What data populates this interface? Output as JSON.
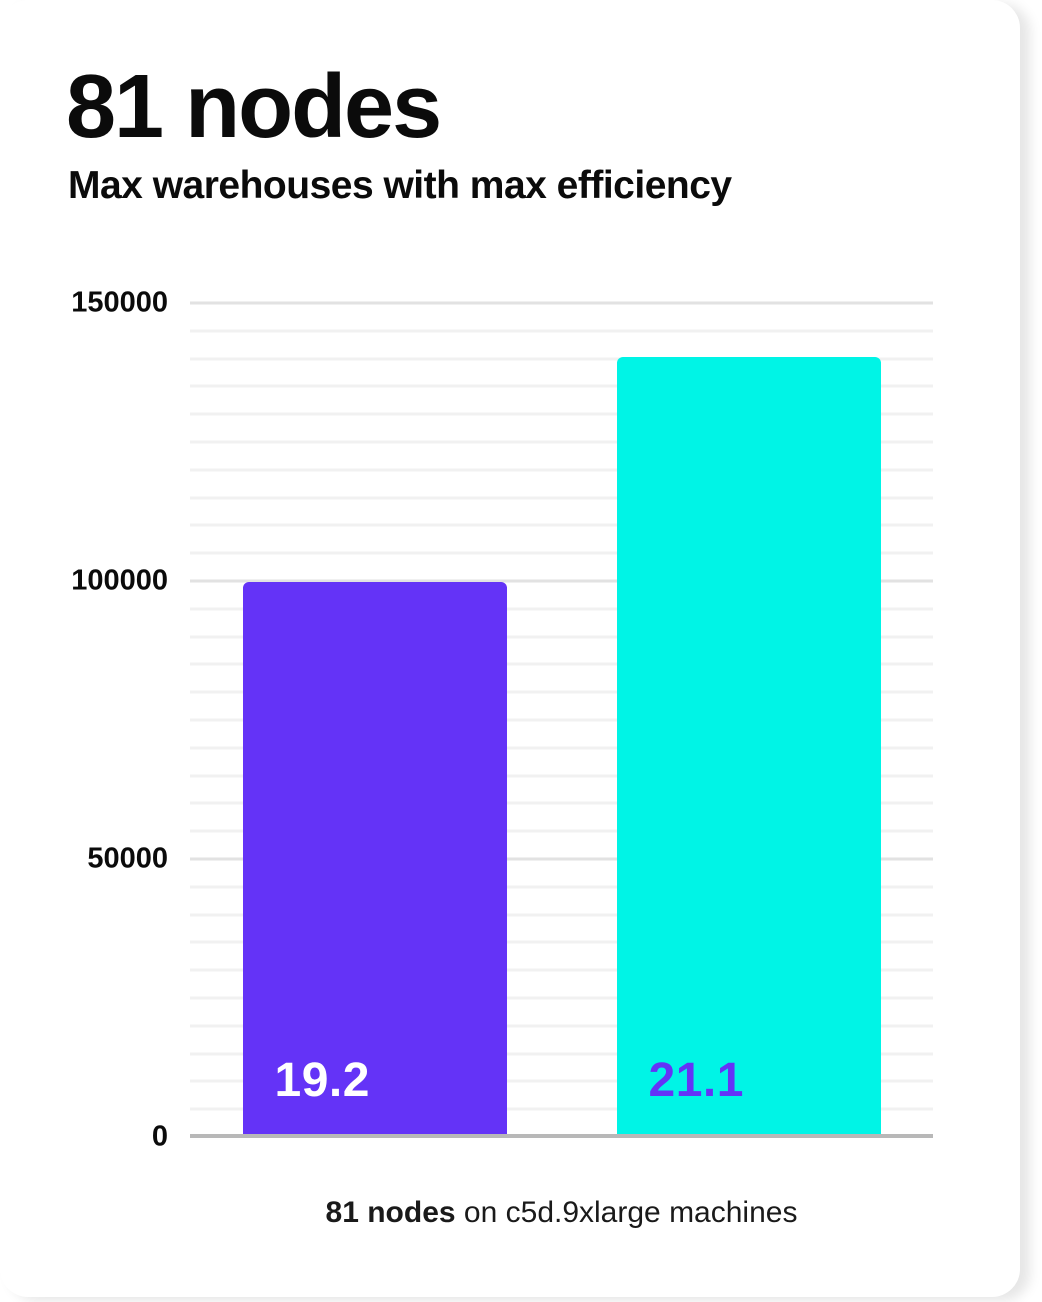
{
  "header": {
    "title": "81 nodes",
    "subtitle": "Max warehouses with max efficiency"
  },
  "caption": {
    "bold_part": "81 nodes",
    "rest_part": " on c5d.9xlarge machines"
  },
  "colors": {
    "card_bg": "#FFFFFF",
    "text": "#0B0B0B",
    "bar1": "#6433F7",
    "bar2": "#00F4E6",
    "bar1_label": "#FFFFFF",
    "bar2_label": "#6433F7",
    "grid_minor": "#F1F1F1",
    "grid_major": "#E2E2E2",
    "axis_line": "#B8B8B8"
  },
  "chart_data": {
    "type": "bar",
    "title": "81 nodes",
    "subtitle": "Max warehouses with max efficiency",
    "categories": [
      "19.2",
      "21.1"
    ],
    "values": [
      99500,
      140000
    ],
    "bar_labels": [
      "19.2",
      "21.1"
    ],
    "bar_colors": [
      "#6433F7",
      "#00F4E6"
    ],
    "bar_label_colors": [
      "#FFFFFF",
      "#6433F7"
    ],
    "xlabel": "",
    "ylabel": "",
    "ylim": [
      0,
      150000
    ],
    "yticks": [
      0,
      50000,
      100000,
      150000
    ],
    "grid_minor_step": 5000,
    "grid_major_step": 50000,
    "legend": "none",
    "annotation": "81 nodes on c5d.9xlarge machines"
  }
}
